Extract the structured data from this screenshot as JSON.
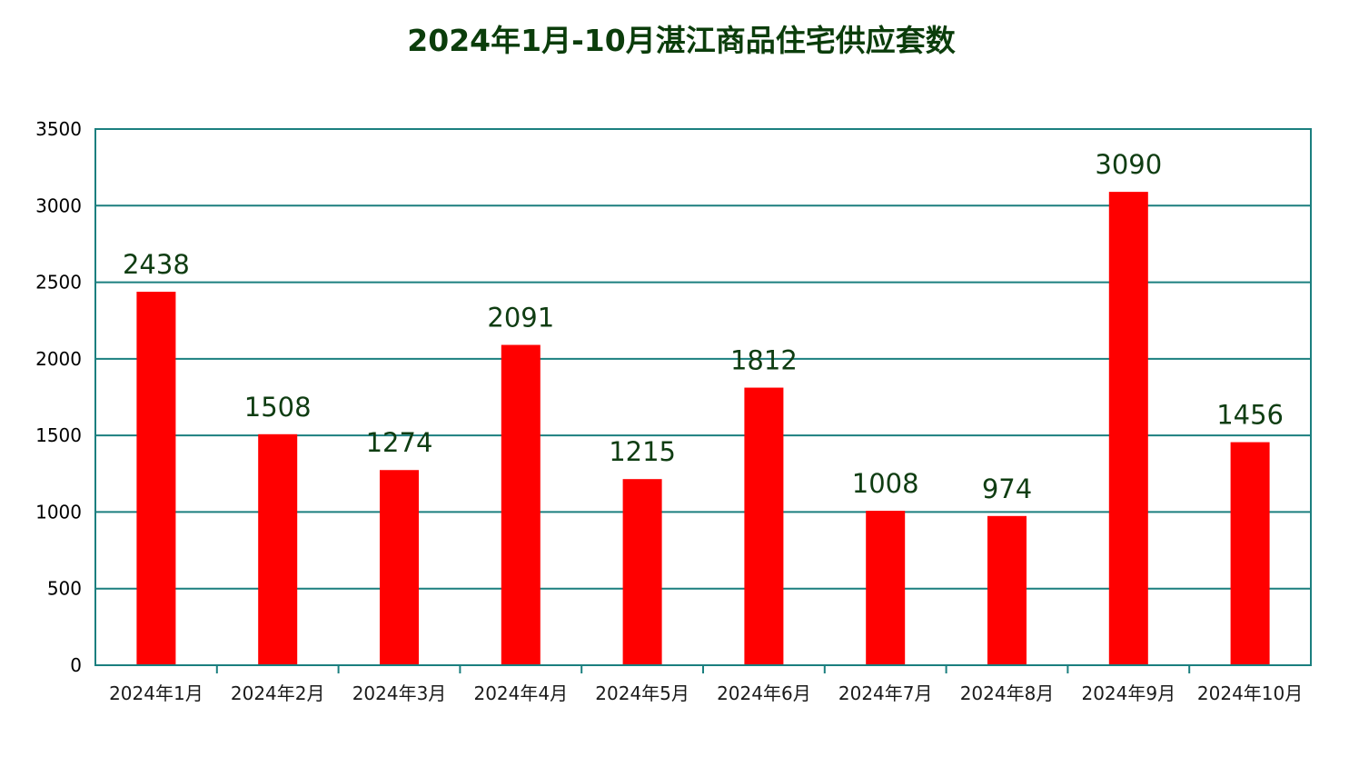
{
  "chart_data": {
    "type": "bar",
    "title": "2024年1月-10月湛江商品住宅供应套数",
    "xlabel": "",
    "ylabel": "",
    "categories": [
      "2024年1月",
      "2024年2月",
      "2024年3月",
      "2024年4月",
      "2024年5月",
      "2024年6月",
      "2024年7月",
      "2024年8月",
      "2024年9月",
      "2024年10月"
    ],
    "values": [
      2438,
      1508,
      1274,
      2091,
      1215,
      1812,
      1008,
      974,
      3090,
      1456
    ],
    "ylim": [
      0,
      3500
    ],
    "yticks": [
      0,
      500,
      1000,
      1500,
      2000,
      2500,
      3000,
      3500
    ],
    "grid": true,
    "legend": "none",
    "colors": {
      "bar": "#ff0000",
      "axis": "#1b7f7f",
      "grid": "#1b7f7f",
      "title": "#0b3d0b",
      "data_label": "#0f3d12"
    }
  }
}
